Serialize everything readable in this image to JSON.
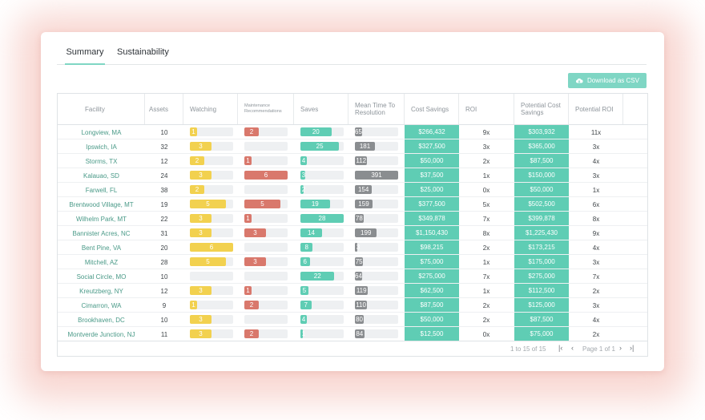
{
  "tabs": [
    {
      "label": "Summary",
      "active": true
    },
    {
      "label": "Sustainability",
      "active": false
    }
  ],
  "download_button": {
    "label": "Download as CSV",
    "icon": "cloud-download-icon"
  },
  "columns": [
    "Facility",
    "Assets",
    "Watching",
    "Maintenance Recommendations",
    "Saves",
    "Mean Time To Resolution",
    "Cost Savings",
    "ROI",
    "Potential Cost Savings",
    "Potential ROI"
  ],
  "colors": {
    "accent": "#7fd6c4",
    "highlight": "#5fcdb4",
    "watching": "#f2d14f",
    "maintenance": "#d9786c",
    "saves": "#5fcdb4",
    "mttr": "#8a8d90",
    "track": "#eef0f2",
    "facility_link": "#4a9a88"
  },
  "rows": [
    {
      "facility": "Longview, MA",
      "assets": "10",
      "watching": "1",
      "maintenance": "2",
      "saves": "20",
      "mttr": "65",
      "cost_savings": "$266,432",
      "roi": "9x",
      "potential_cost_savings": "$303,932",
      "potential_roi": "11x"
    },
    {
      "facility": "Ipswich, IA",
      "assets": "32",
      "watching": "3",
      "maintenance": "",
      "saves": "25",
      "mttr": "181",
      "cost_savings": "$327,500",
      "roi": "3x",
      "potential_cost_savings": "$365,000",
      "potential_roi": "3x"
    },
    {
      "facility": "Storms, TX",
      "assets": "12",
      "watching": "2",
      "maintenance": "1",
      "saves": "4",
      "mttr": "112",
      "cost_savings": "$50,000",
      "roi": "2x",
      "potential_cost_savings": "$87,500",
      "potential_roi": "4x"
    },
    {
      "facility": "Kalauao, SD",
      "assets": "24",
      "watching": "3",
      "maintenance": "6",
      "saves": "3",
      "mttr": "391",
      "cost_savings": "$37,500",
      "roi": "1x",
      "potential_cost_savings": "$150,000",
      "potential_roi": "3x"
    },
    {
      "facility": "Farwell, FL",
      "assets": "38",
      "watching": "2",
      "maintenance": "",
      "saves": "2",
      "mttr": "154",
      "cost_savings": "$25,000",
      "roi": "0x",
      "potential_cost_savings": "$50,000",
      "potential_roi": "1x"
    },
    {
      "facility": "Brentwood Village, MT",
      "assets": "19",
      "watching": "5",
      "maintenance": "5",
      "saves": "19",
      "mttr": "159",
      "cost_savings": "$377,500",
      "roi": "5x",
      "potential_cost_savings": "$502,500",
      "potential_roi": "6x"
    },
    {
      "facility": "Wilhelm Park, MT",
      "assets": "22",
      "watching": "3",
      "maintenance": "1",
      "saves": "28",
      "mttr": "78",
      "cost_savings": "$349,878",
      "roi": "7x",
      "potential_cost_savings": "$399,878",
      "potential_roi": "8x"
    },
    {
      "facility": "Bannister Acres, NC",
      "assets": "31",
      "watching": "3",
      "maintenance": "3",
      "saves": "14",
      "mttr": "199",
      "cost_savings": "$1,150,430",
      "roi": "8x",
      "potential_cost_savings": "$1,225,430",
      "potential_roi": "9x"
    },
    {
      "facility": "Bent Pine, VA",
      "assets": "20",
      "watching": "6",
      "maintenance": "",
      "saves": "8",
      "mttr": "3",
      "cost_savings": "$98,215",
      "roi": "2x",
      "potential_cost_savings": "$173,215",
      "potential_roi": "4x"
    },
    {
      "facility": "Mitchell, AZ",
      "assets": "28",
      "watching": "5",
      "maintenance": "3",
      "saves": "6",
      "mttr": "75",
      "cost_savings": "$75,000",
      "roi": "1x",
      "potential_cost_savings": "$175,000",
      "potential_roi": "3x"
    },
    {
      "facility": "Social Circle, MO",
      "assets": "10",
      "watching": "",
      "maintenance": "",
      "saves": "22",
      "mttr": "64",
      "cost_savings": "$275,000",
      "roi": "7x",
      "potential_cost_savings": "$275,000",
      "potential_roi": "7x"
    },
    {
      "facility": "Kreutzberg, NY",
      "assets": "12",
      "watching": "3",
      "maintenance": "1",
      "saves": "5",
      "mttr": "119",
      "cost_savings": "$62,500",
      "roi": "1x",
      "potential_cost_savings": "$112,500",
      "potential_roi": "2x"
    },
    {
      "facility": "Cimarron, WA",
      "assets": "9",
      "watching": "1",
      "maintenance": "2",
      "saves": "7",
      "mttr": "110",
      "cost_savings": "$87,500",
      "roi": "2x",
      "potential_cost_savings": "$125,000",
      "potential_roi": "3x"
    },
    {
      "facility": "Brookhaven, DC",
      "assets": "10",
      "watching": "3",
      "maintenance": "",
      "saves": "4",
      "mttr": "80",
      "cost_savings": "$50,000",
      "roi": "2x",
      "potential_cost_savings": "$87,500",
      "potential_roi": "4x"
    },
    {
      "facility": "Montverde Junction, NJ",
      "assets": "11",
      "watching": "3",
      "maintenance": "2",
      "saves": "1",
      "mttr": "84",
      "cost_savings": "$12,500",
      "roi": "0x",
      "potential_cost_savings": "$75,000",
      "potential_roi": "2x"
    }
  ],
  "pagination": {
    "range": "1 to 15 of 15",
    "page": "Page 1 of 1"
  }
}
